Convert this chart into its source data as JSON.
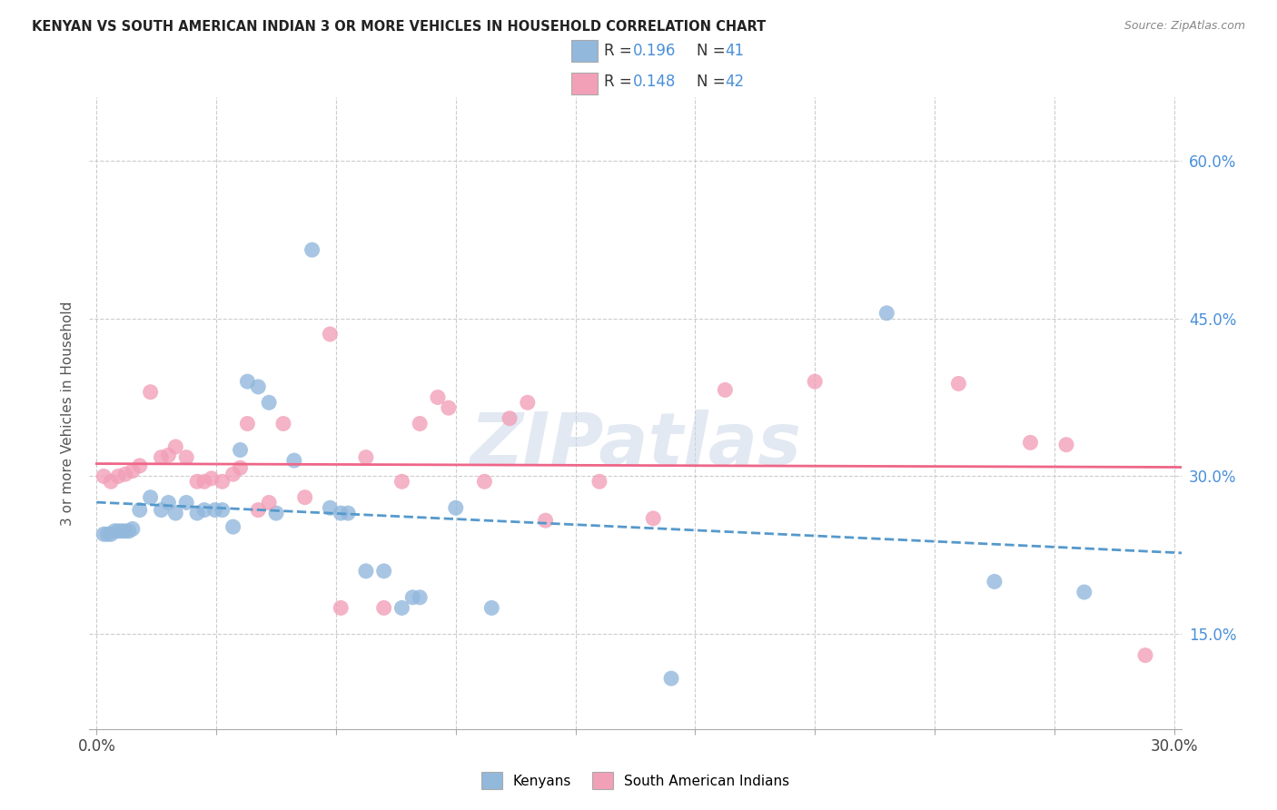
{
  "title": "KENYAN VS SOUTH AMERICAN INDIAN 3 OR MORE VEHICLES IN HOUSEHOLD CORRELATION CHART",
  "source": "Source: ZipAtlas.com",
  "ylabel": "3 or more Vehicles in Household",
  "ytick_values": [
    0.15,
    0.3,
    0.45,
    0.6
  ],
  "xlim": [
    -0.002,
    0.302
  ],
  "ylim": [
    0.06,
    0.66
  ],
  "watermark": "ZIPatlas",
  "blue_color": "#92B8DC",
  "pink_color": "#F2A0B8",
  "blue_line_color": "#5599CC",
  "pink_line_color": "#EE6688",
  "blue_scatter": [
    [
      0.002,
      0.245
    ],
    [
      0.003,
      0.245
    ],
    [
      0.004,
      0.245
    ],
    [
      0.005,
      0.248
    ],
    [
      0.006,
      0.248
    ],
    [
      0.007,
      0.248
    ],
    [
      0.008,
      0.248
    ],
    [
      0.009,
      0.248
    ],
    [
      0.01,
      0.25
    ],
    [
      0.012,
      0.268
    ],
    [
      0.015,
      0.28
    ],
    [
      0.018,
      0.268
    ],
    [
      0.02,
      0.275
    ],
    [
      0.022,
      0.265
    ],
    [
      0.025,
      0.275
    ],
    [
      0.028,
      0.265
    ],
    [
      0.03,
      0.268
    ],
    [
      0.033,
      0.268
    ],
    [
      0.035,
      0.268
    ],
    [
      0.038,
      0.252
    ],
    [
      0.04,
      0.325
    ],
    [
      0.042,
      0.39
    ],
    [
      0.045,
      0.385
    ],
    [
      0.048,
      0.37
    ],
    [
      0.05,
      0.265
    ],
    [
      0.055,
      0.315
    ],
    [
      0.06,
      0.515
    ],
    [
      0.065,
      0.27
    ],
    [
      0.068,
      0.265
    ],
    [
      0.07,
      0.265
    ],
    [
      0.075,
      0.21
    ],
    [
      0.08,
      0.21
    ],
    [
      0.085,
      0.175
    ],
    [
      0.088,
      0.185
    ],
    [
      0.09,
      0.185
    ],
    [
      0.1,
      0.27
    ],
    [
      0.11,
      0.175
    ],
    [
      0.16,
      0.108
    ],
    [
      0.22,
      0.455
    ],
    [
      0.25,
      0.2
    ],
    [
      0.275,
      0.19
    ]
  ],
  "pink_scatter": [
    [
      0.002,
      0.3
    ],
    [
      0.004,
      0.295
    ],
    [
      0.006,
      0.3
    ],
    [
      0.008,
      0.302
    ],
    [
      0.01,
      0.305
    ],
    [
      0.012,
      0.31
    ],
    [
      0.015,
      0.38
    ],
    [
      0.018,
      0.318
    ],
    [
      0.02,
      0.32
    ],
    [
      0.022,
      0.328
    ],
    [
      0.025,
      0.318
    ],
    [
      0.028,
      0.295
    ],
    [
      0.03,
      0.295
    ],
    [
      0.032,
      0.298
    ],
    [
      0.035,
      0.295
    ],
    [
      0.038,
      0.302
    ],
    [
      0.04,
      0.308
    ],
    [
      0.042,
      0.35
    ],
    [
      0.045,
      0.268
    ],
    [
      0.048,
      0.275
    ],
    [
      0.052,
      0.35
    ],
    [
      0.058,
      0.28
    ],
    [
      0.065,
      0.435
    ],
    [
      0.068,
      0.175
    ],
    [
      0.075,
      0.318
    ],
    [
      0.08,
      0.175
    ],
    [
      0.085,
      0.295
    ],
    [
      0.09,
      0.35
    ],
    [
      0.095,
      0.375
    ],
    [
      0.098,
      0.365
    ],
    [
      0.108,
      0.295
    ],
    [
      0.115,
      0.355
    ],
    [
      0.12,
      0.37
    ],
    [
      0.125,
      0.258
    ],
    [
      0.14,
      0.295
    ],
    [
      0.155,
      0.26
    ],
    [
      0.175,
      0.382
    ],
    [
      0.2,
      0.39
    ],
    [
      0.24,
      0.388
    ],
    [
      0.26,
      0.332
    ],
    [
      0.27,
      0.33
    ],
    [
      0.292,
      0.13
    ]
  ]
}
